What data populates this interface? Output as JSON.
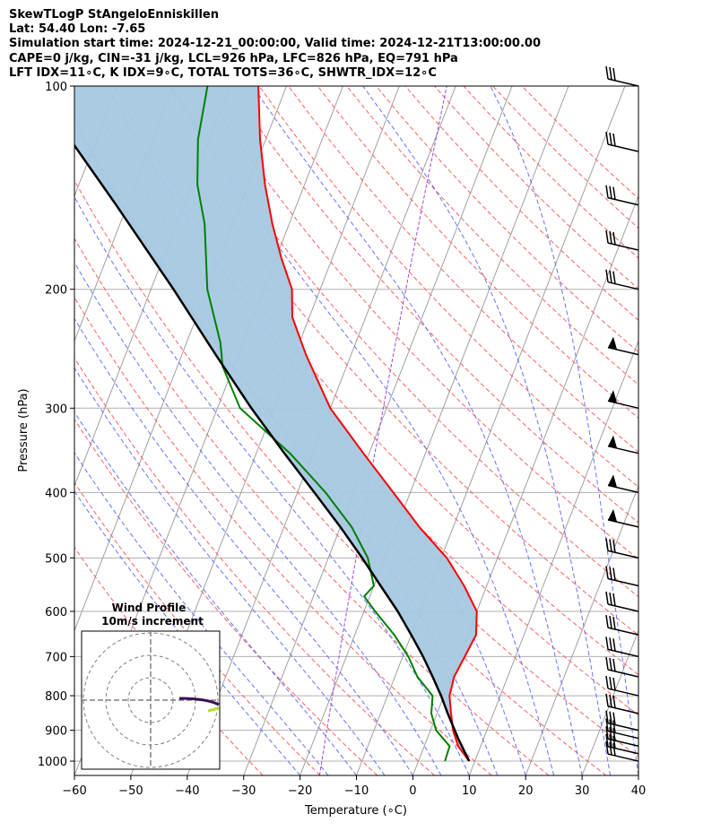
{
  "header": {
    "line1": "SkewTLogP StAngeloEnniskillen",
    "line2": "Lat: 54.40   Lon: -7.65",
    "line3": "Simulation start time: 2024-12-21_00:00:00, Valid time: 2024-12-21T13:00:00.00",
    "line4": "CAPE=0 j/kg, CIN=-31 j/kg, LCL=926 hPa, LFC=826 hPa, EQ=791 hPa",
    "line5": "LFT IDX=11∘C, K IDX=9∘C, TOTAL TOTS=36∘C, SHWTR_IDX=12∘C"
  },
  "chart_data": {
    "type": "skew-t log-p",
    "xlabel": "Temperature (∘C)",
    "ylabel": "Pressure (hPa)",
    "xlim": [
      -60,
      40
    ],
    "ylim": [
      1050,
      100
    ],
    "x_ticks": [
      -60,
      -50,
      -40,
      -30,
      -20,
      -10,
      0,
      10,
      20,
      30,
      40
    ],
    "y_ticks": [
      100,
      200,
      300,
      400,
      500,
      600,
      700,
      800,
      900,
      1000
    ],
    "series": [
      {
        "name": "temperature",
        "color": "#ff0000",
        "points": [
          [
            1000,
            9
          ],
          [
            950,
            6
          ],
          [
            900,
            4
          ],
          [
            850,
            2.5
          ],
          [
            800,
            1
          ],
          [
            750,
            0.5
          ],
          [
            700,
            1
          ],
          [
            650,
            1.5
          ],
          [
            600,
            0
          ],
          [
            550,
            -4
          ],
          [
            500,
            -9
          ],
          [
            450,
            -16
          ],
          [
            400,
            -23
          ],
          [
            350,
            -31
          ],
          [
            300,
            -40
          ],
          [
            250,
            -48
          ],
          [
            220,
            -53
          ],
          [
            200,
            -55
          ],
          [
            180,
            -59
          ],
          [
            160,
            -63
          ],
          [
            140,
            -67
          ],
          [
            120,
            -71
          ],
          [
            100,
            -75
          ]
        ]
      },
      {
        "name": "dewpoint",
        "color": "#008000",
        "points": [
          [
            1000,
            4.7
          ],
          [
            950,
            4.5
          ],
          [
            900,
            1
          ],
          [
            850,
            -1
          ],
          [
            800,
            -2
          ],
          [
            750,
            -6
          ],
          [
            700,
            -9
          ],
          [
            650,
            -13
          ],
          [
            600,
            -18
          ],
          [
            570,
            -21
          ],
          [
            550,
            -20
          ],
          [
            500,
            -23
          ],
          [
            450,
            -28
          ],
          [
            400,
            -35
          ],
          [
            350,
            -44
          ],
          [
            300,
            -56
          ],
          [
            260,
            -62
          ],
          [
            240,
            -64
          ],
          [
            200,
            -70
          ],
          [
            160,
            -75
          ],
          [
            140,
            -79
          ],
          [
            120,
            -82
          ],
          [
            100,
            -84
          ]
        ]
      },
      {
        "name": "parcel",
        "color": "#000000",
        "points": [
          [
            1000,
            9
          ],
          [
            926,
            5.5
          ],
          [
            850,
            1.9
          ],
          [
            800,
            -0.5
          ],
          [
            750,
            -3.3
          ],
          [
            700,
            -6.4
          ],
          [
            650,
            -10
          ],
          [
            600,
            -14
          ],
          [
            550,
            -18.8
          ],
          [
            500,
            -24
          ],
          [
            450,
            -30
          ],
          [
            400,
            -37
          ],
          [
            350,
            -45
          ],
          [
            300,
            -54
          ],
          [
            250,
            -64
          ],
          [
            200,
            -76
          ],
          [
            150,
            -92
          ],
          [
            100,
            -115
          ]
        ]
      }
    ],
    "cin_fill_color": "#a6c8e0",
    "wind_barbs_pressure": [
      1000,
      975,
      950,
      925,
      900,
      850,
      800,
      750,
      700,
      650,
      600,
      550,
      500,
      450,
      400,
      350,
      300,
      250,
      200,
      175,
      150,
      125,
      100
    ],
    "inset": {
      "title": "Wind Profile",
      "subtitle": "10m/s increment"
    }
  }
}
